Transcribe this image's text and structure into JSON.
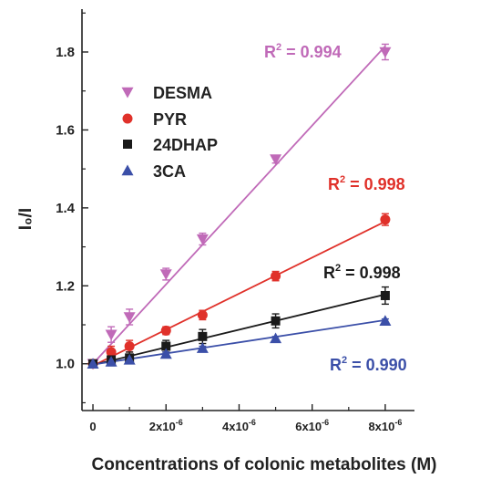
{
  "chart_data": {
    "type": "scatter",
    "xlabel": "Concentrations of colonic metabolites (M)",
    "ylabel": "I₀/I",
    "xlim": [
      -3e-07,
      8.8e-06
    ],
    "ylim": [
      0.88,
      1.91
    ],
    "x_ticks": [
      {
        "value": 0,
        "base": "0",
        "exp": ""
      },
      {
        "value": 2e-06,
        "base": "2x10",
        "exp": "-6"
      },
      {
        "value": 4e-06,
        "base": "4x10",
        "exp": "-6"
      },
      {
        "value": 6e-06,
        "base": "6x10",
        "exp": "-6"
      },
      {
        "value": 8e-06,
        "base": "8x10",
        "exp": "-6"
      }
    ],
    "y_ticks": [
      {
        "value": 1.0,
        "label": "1.0"
      },
      {
        "value": 1.2,
        "label": "1.2"
      },
      {
        "value": 1.4,
        "label": "1.4"
      },
      {
        "value": 1.6,
        "label": "1.6"
      },
      {
        "value": 1.8,
        "label": "1.8"
      }
    ],
    "legend_position": "upper-left",
    "series": [
      {
        "name": "DESMA",
        "color": "#c06ab8",
        "marker": "triangle-down",
        "x": [
          0,
          5e-07,
          1e-06,
          2e-06,
          3e-06,
          5e-06,
          8e-06
        ],
        "y": [
          1.0,
          1.075,
          1.12,
          1.23,
          1.32,
          1.525,
          1.8
        ],
        "error": [
          0.008,
          0.02,
          0.02,
          0.015,
          0.015,
          0.01,
          0.02
        ],
        "fit": {
          "x0": 0,
          "y0": 1.0,
          "x1": 8e-06,
          "y1": 1.815
        },
        "r2_base": "R",
        "r2_sup": "2",
        "r2_rest": " = 0.994"
      },
      {
        "name": "PYR",
        "color": "#e0312a",
        "marker": "circle",
        "x": [
          0,
          5e-07,
          1e-06,
          2e-06,
          3e-06,
          5e-06,
          8e-06
        ],
        "y": [
          1.0,
          1.03,
          1.045,
          1.085,
          1.125,
          1.225,
          1.37
        ],
        "error": [
          0.008,
          0.015,
          0.015,
          0.01,
          0.012,
          0.012,
          0.015
        ],
        "fit": {
          "x0": 0,
          "y0": 0.995,
          "x1": 8e-06,
          "y1": 1.365
        },
        "r2_base": "R",
        "r2_sup": "2",
        "r2_rest": " = 0.998"
      },
      {
        "name": "24DHAP",
        "color": "#1a1a1a",
        "marker": "square",
        "x": [
          0,
          5e-07,
          1e-06,
          2e-06,
          3e-06,
          5e-06,
          8e-06
        ],
        "y": [
          1.0,
          1.01,
          1.015,
          1.045,
          1.07,
          1.11,
          1.175
        ],
        "error": [
          0.008,
          0.015,
          0.015,
          0.015,
          0.018,
          0.018,
          0.022
        ],
        "fit": {
          "x0": 0,
          "y0": 0.997,
          "x1": 8e-06,
          "y1": 1.178
        },
        "r2_base": "R",
        "r2_sup": "2",
        "r2_rest": " = 0.998"
      },
      {
        "name": "3CA",
        "color": "#3b4fa8",
        "marker": "triangle-up",
        "x": [
          0,
          5e-07,
          1e-06,
          2e-06,
          3e-06,
          5e-06,
          8e-06
        ],
        "y": [
          1.0,
          1.005,
          1.01,
          1.025,
          1.04,
          1.065,
          1.11
        ],
        "error": [
          0.005,
          0.008,
          0.008,
          0.005,
          0.005,
          0.005,
          0.005
        ],
        "fit": {
          "x0": 0,
          "y0": 0.998,
          "x1": 8e-06,
          "y1": 1.112
        },
        "r2_base": "R",
        "r2_sup": "2",
        "r2_rest": " = 0.990"
      }
    ]
  }
}
